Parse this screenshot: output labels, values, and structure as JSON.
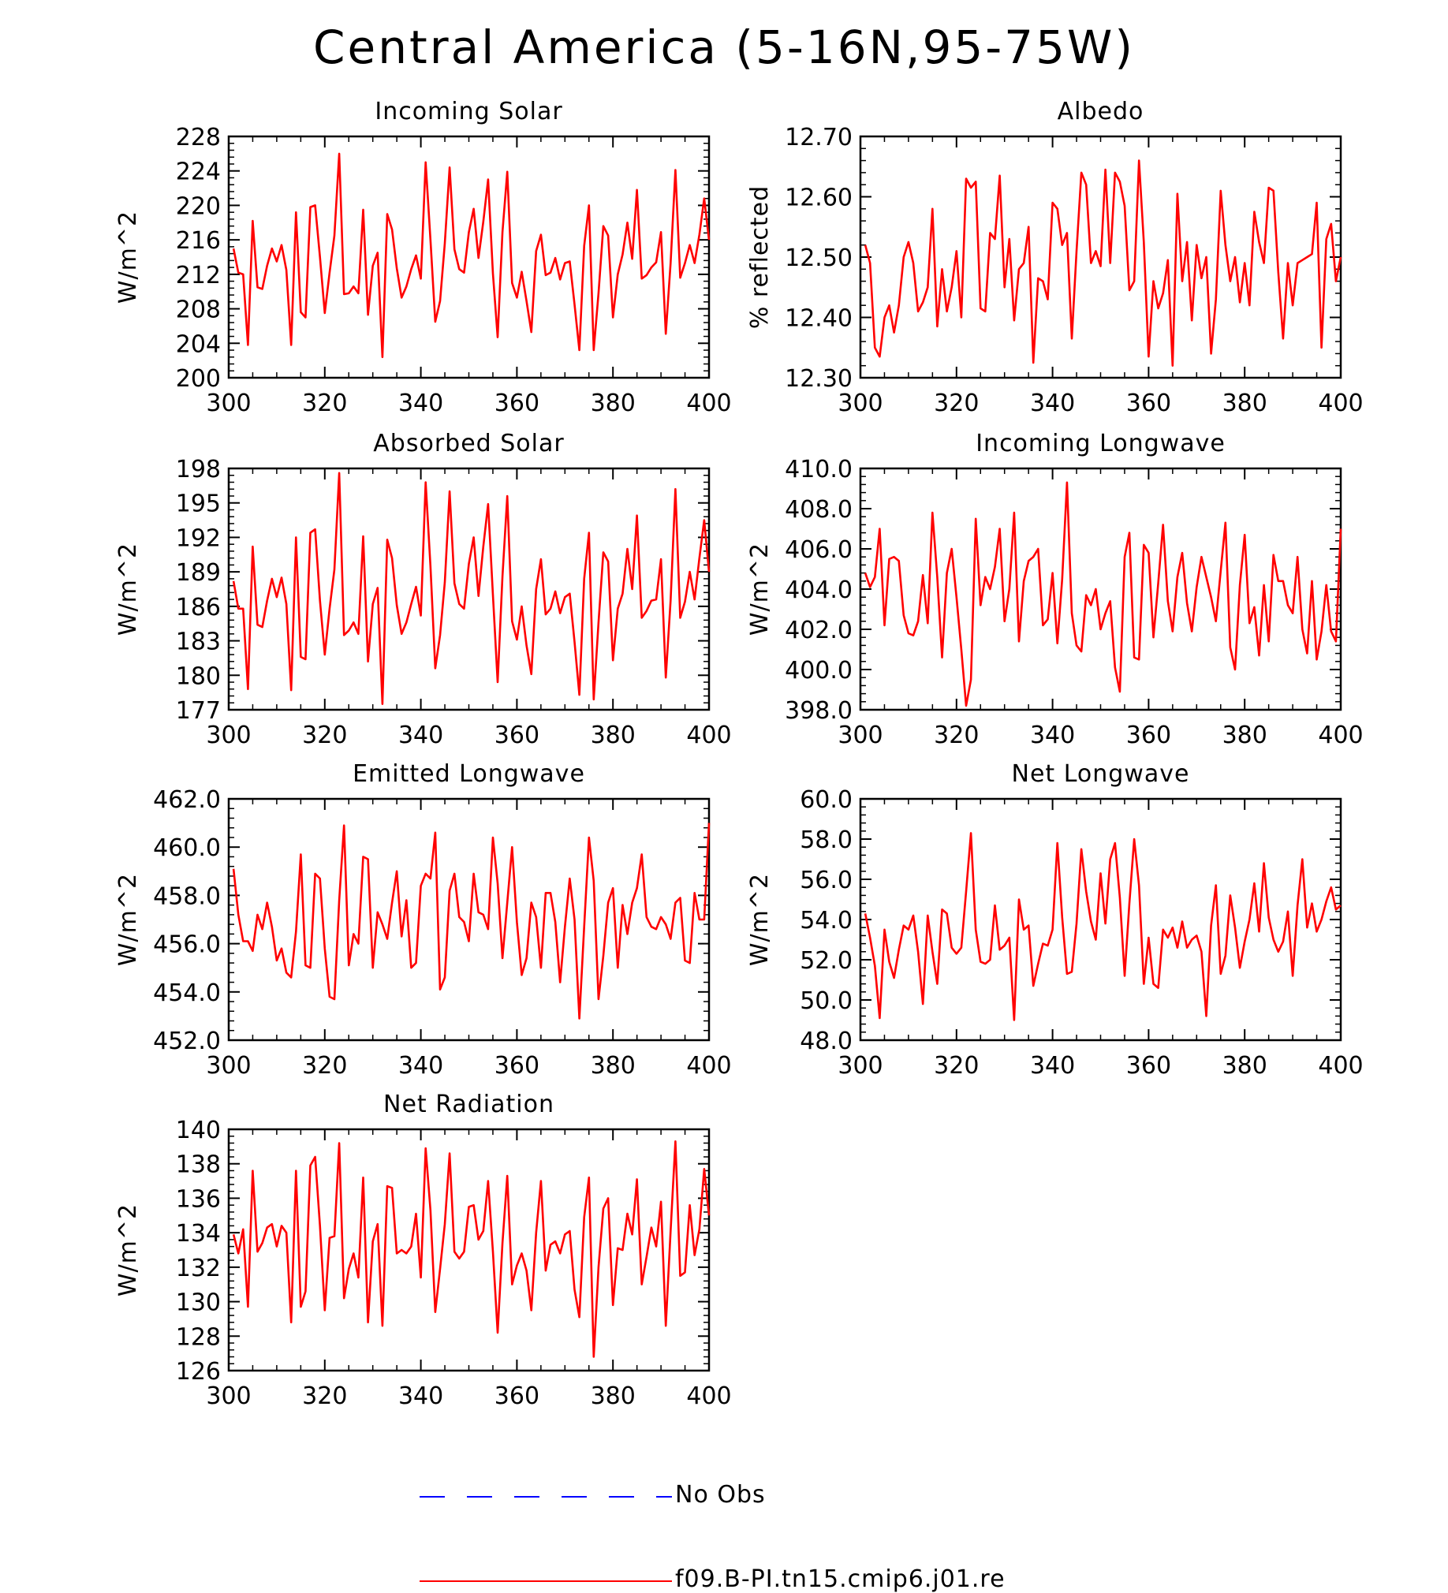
{
  "title": "Central America (5-16N,95-75W)",
  "colors": {
    "model": "#ff0000",
    "obs": "#0000ff",
    "axis": "#000000"
  },
  "legend": [
    {
      "label": "No Obs",
      "color": "#0000ff",
      "style": "dashed"
    },
    {
      "label": "f09.B-PI.tn15.cmip6.j01.re",
      "color": "#ff0000",
      "style": "solid"
    }
  ],
  "chart_data": [
    {
      "type": "line",
      "title": "Incoming Solar",
      "xlabel": "",
      "ylabel": "W/m^2",
      "xlim": [
        300,
        400
      ],
      "ylim": [
        200,
        228
      ],
      "yticks": [
        "200",
        "204",
        "208",
        "212",
        "216",
        "220",
        "224",
        "228"
      ],
      "xticks": [
        "300",
        "320",
        "340",
        "360",
        "380",
        "400"
      ],
      "series": [
        {
          "name": "f09.B-PI.tn15.cmip6.j01.re",
          "x_start": 301,
          "values": [
            215,
            212.2,
            212,
            203.8,
            218.2,
            210.5,
            210.3,
            213,
            215,
            213.5,
            215.4,
            212.5,
            203.8,
            219.2,
            207.6,
            207,
            219.8,
            220,
            214,
            207.5,
            212.2,
            216.5,
            226,
            209.7,
            209.8,
            210.6,
            209.8,
            219.5,
            207.3,
            213,
            214.5,
            202.4,
            219,
            217.2,
            212.7,
            209.3,
            210.6,
            212.6,
            214.2,
            211.5,
            225,
            216,
            206.5,
            208.9,
            215.6,
            224.4,
            214.9,
            212.6,
            212.2,
            216.9,
            219.6,
            213.9,
            218.1,
            223,
            212.1,
            204.7,
            216.9,
            223.9,
            211,
            209.3,
            212.3,
            208.9,
            205.3,
            214.7,
            216.6,
            211.9,
            212.2,
            213.9,
            211.4,
            213.3,
            213.5,
            208.5,
            203.2,
            215.3,
            220,
            203.2,
            209.8,
            217.6,
            216.5,
            207,
            212,
            214.3,
            218,
            213.8,
            221.8,
            211.5,
            211.9,
            212.8,
            213.4,
            216.9,
            205.1,
            213.3,
            224.1,
            211.6,
            213.3,
            215.4,
            213.3,
            216.6,
            220.8,
            216
          ]
        }
      ]
    },
    {
      "type": "line",
      "title": "Albedo",
      "xlabel": "",
      "ylabel": "% reflected",
      "xlim": [
        300,
        400
      ],
      "ylim": [
        12.3,
        12.7
      ],
      "yticks": [
        "12.30",
        "12.40",
        "12.50",
        "12.60",
        "12.70"
      ],
      "xticks": [
        "300",
        "320",
        "340",
        "360",
        "380",
        "400"
      ],
      "series": [
        {
          "name": "f09.B-PI.tn15.cmip6.j01.re",
          "x_start": 301,
          "values": [
            12.52,
            12.49,
            12.35,
            12.335,
            12.4,
            12.42,
            12.375,
            12.42,
            12.5,
            12.525,
            12.49,
            12.41,
            12.425,
            12.45,
            12.58,
            12.385,
            12.48,
            12.41,
            12.45,
            12.51,
            12.4,
            12.63,
            12.615,
            12.625,
            12.415,
            12.41,
            12.54,
            12.53,
            12.635,
            12.45,
            12.53,
            12.395,
            12.48,
            12.49,
            12.55,
            12.325,
            12.465,
            12.46,
            12.43,
            12.59,
            12.58,
            12.52,
            12.54,
            12.365,
            12.51,
            12.64,
            12.62,
            12.49,
            12.51,
            12.485,
            12.645,
            12.49,
            12.64,
            12.625,
            12.585,
            12.445,
            12.46,
            12.66,
            12.525,
            12.335,
            12.46,
            12.415,
            12.44,
            12.495,
            12.32,
            12.605,
            12.46,
            12.525,
            12.395,
            12.52,
            12.465,
            12.5,
            12.34,
            12.43,
            12.61,
            12.52,
            12.46,
            12.5,
            12.425,
            12.49,
            12.42,
            12.575,
            12.525,
            12.49,
            12.615,
            12.61,
            12.475,
            12.365,
            12.49,
            12.42,
            12.49,
            12.495,
            12.5,
            12.505,
            12.59,
            12.35,
            12.53,
            12.555,
            12.46,
            12.5
          ]
        }
      ]
    },
    {
      "type": "line",
      "title": "Absorbed Solar",
      "xlabel": "",
      "ylabel": "W/m^2",
      "xlim": [
        300,
        400
      ],
      "ylim": [
        177,
        198
      ],
      "yticks": [
        "177",
        "180",
        "183",
        "186",
        "189",
        "192",
        "195",
        "198"
      ],
      "xticks": [
        "300",
        "320",
        "340",
        "360",
        "380",
        "400"
      ],
      "series": [
        {
          "name": "f09.B-PI.tn15.cmip6.j01.re",
          "x_start": 301,
          "values": [
            188.2,
            185.8,
            185.8,
            178.8,
            191.2,
            184.4,
            184.2,
            186.5,
            188.4,
            186.8,
            188.5,
            186.2,
            178.7,
            192,
            181.6,
            181.4,
            192.4,
            192.7,
            186.5,
            181.8,
            185.8,
            189.2,
            197.6,
            183.5,
            183.9,
            184.6,
            183.6,
            192.1,
            181.2,
            186.2,
            187.6,
            177.5,
            191.8,
            190.2,
            186.1,
            183.6,
            184.6,
            186.2,
            187.7,
            185.2,
            196.8,
            189.5,
            180.6,
            183.5,
            188.1,
            196,
            188,
            186.2,
            185.8,
            189.7,
            192,
            186.9,
            191.2,
            194.9,
            187,
            179.4,
            188.6,
            195.6,
            184.7,
            183.1,
            186,
            182.6,
            180.1,
            187.5,
            190.1,
            185.3,
            185.8,
            187.3,
            185.4,
            186.8,
            187.1,
            182.9,
            178.3,
            188.4,
            192.4,
            177.9,
            184.6,
            190.7,
            189.9,
            181.3,
            185.8,
            187.1,
            191,
            187.5,
            193.9,
            185,
            185.6,
            186.5,
            186.6,
            190.1,
            179.8,
            186.5,
            196.2,
            185,
            186.4,
            189,
            186.6,
            190.2,
            193.5,
            189
          ]
        }
      ]
    },
    {
      "type": "line",
      "title": "Incoming Longwave",
      "xlabel": "",
      "ylabel": "W/m^2",
      "xlim": [
        300,
        400
      ],
      "ylim": [
        398,
        410
      ],
      "yticks": [
        "398.0",
        "400.0",
        "402.0",
        "404.0",
        "406.0",
        "408.0",
        "410.0"
      ],
      "xticks": [
        "300",
        "320",
        "340",
        "360",
        "380",
        "400"
      ],
      "series": [
        {
          "name": "f09.B-PI.tn15.cmip6.j01.re",
          "x_start": 301,
          "values": [
            404.8,
            404.1,
            404.6,
            407,
            402.2,
            405.5,
            405.6,
            405.4,
            402.7,
            401.8,
            401.7,
            402.4,
            404.7,
            402.3,
            407.8,
            404.6,
            400.6,
            404.8,
            406,
            403.6,
            401,
            398.2,
            399.5,
            407.5,
            403.2,
            404.6,
            404,
            405.1,
            407,
            402.4,
            404,
            407.8,
            401.4,
            404.4,
            405.4,
            405.6,
            406,
            402.2,
            402.5,
            404.8,
            401.3,
            404.5,
            409.3,
            402.8,
            401.2,
            400.9,
            403.7,
            403.2,
            404,
            402,
            402.8,
            403.4,
            400.1,
            398.9,
            405.6,
            406.8,
            400.6,
            400.5,
            406.2,
            405.8,
            401.6,
            404.3,
            407.2,
            403.4,
            401.9,
            404.6,
            405.8,
            403.3,
            401.9,
            404.1,
            405.6,
            404.6,
            403.6,
            402.4,
            404.9,
            407.3,
            401.1,
            400,
            404.2,
            406.7,
            402.3,
            403.1,
            400.7,
            404.2,
            401.4,
            405.7,
            404.4,
            404.4,
            403.2,
            402.8,
            405.6,
            402,
            400.8,
            404.4,
            400.5,
            401.9,
            404.2,
            401.9,
            401.4,
            407
          ]
        }
      ]
    },
    {
      "type": "line",
      "title": "Emitted Longwave",
      "xlabel": "",
      "ylabel": "W/m^2",
      "xlim": [
        300,
        400
      ],
      "ylim": [
        452,
        462
      ],
      "yticks": [
        "452.0",
        "454.0",
        "456.0",
        "458.0",
        "460.0",
        "462.0"
      ],
      "xticks": [
        "300",
        "320",
        "340",
        "360",
        "380",
        "400"
      ],
      "series": [
        {
          "name": "f09.B-PI.tn15.cmip6.j01.re",
          "x_start": 301,
          "values": [
            459.1,
            457.2,
            456.1,
            456.1,
            455.7,
            457.2,
            456.6,
            457.7,
            456.7,
            455.3,
            455.8,
            454.8,
            454.6,
            456.5,
            459.7,
            455.1,
            455,
            458.9,
            458.7,
            455.8,
            453.8,
            453.7,
            457.8,
            460.9,
            455.1,
            456.4,
            456,
            459.6,
            459.5,
            455,
            457.3,
            456.8,
            456.2,
            457.7,
            459,
            456.3,
            457.8,
            455,
            455.2,
            458.4,
            458.9,
            458.7,
            460.6,
            454.1,
            454.6,
            458.2,
            458.9,
            457.1,
            456.9,
            456.1,
            458.9,
            457.3,
            457.2,
            456.6,
            460.4,
            458.5,
            455.4,
            457.7,
            460,
            456.9,
            454.7,
            455.4,
            457.7,
            457.1,
            455,
            458.1,
            458.1,
            456.9,
            454.4,
            456.7,
            458.7,
            457,
            452.9,
            456.7,
            460.4,
            458.6,
            453.7,
            455.5,
            457.7,
            458.3,
            455,
            457.6,
            456.4,
            457.7,
            458.3,
            459.7,
            457.1,
            456.7,
            456.6,
            457.1,
            456.8,
            456.2,
            457.7,
            457.9,
            455.3,
            455.2,
            458.1,
            457,
            457,
            461
          ]
        }
      ]
    },
    {
      "type": "line",
      "title": "Net Longwave",
      "xlabel": "",
      "ylabel": "W/m^2",
      "xlim": [
        300,
        400
      ],
      "ylim": [
        48,
        60
      ],
      "yticks": [
        "48.0",
        "50.0",
        "52.0",
        "54.0",
        "56.0",
        "58.0",
        "60.0"
      ],
      "xticks": [
        "300",
        "320",
        "340",
        "360",
        "380",
        "400"
      ],
      "series": [
        {
          "name": "f09.B-PI.tn15.cmip6.j01.re",
          "x_start": 301,
          "values": [
            54.3,
            53.1,
            51.7,
            49.1,
            53.5,
            51.9,
            51.1,
            52.5,
            53.7,
            53.5,
            54.2,
            52.4,
            49.8,
            54.2,
            52.4,
            50.8,
            54.5,
            54.3,
            52.6,
            52.3,
            52.6,
            55.4,
            58.3,
            53.5,
            51.9,
            51.8,
            52,
            54.7,
            52.5,
            52.7,
            53.1,
            49,
            55,
            53.5,
            53.7,
            50.7,
            51.8,
            52.8,
            52.7,
            53.5,
            57.8,
            54.1,
            51.3,
            51.4,
            53.8,
            57.5,
            55.4,
            53.9,
            53,
            56.3,
            53.8,
            57,
            57.8,
            55.1,
            51.2,
            54.8,
            58,
            55.7,
            50.8,
            53.1,
            50.8,
            50.6,
            53.5,
            53.1,
            53.6,
            52.6,
            53.9,
            52.6,
            53,
            53.2,
            52.4,
            49.2,
            53.7,
            55.7,
            51.3,
            52.2,
            55.2,
            53.6,
            51.6,
            52.9,
            54,
            55.8,
            53.4,
            56.8,
            54.1,
            53,
            52.4,
            52.9,
            54.4,
            51.2,
            54.7,
            57,
            53.6,
            54.8,
            53.4,
            54,
            54.9,
            55.6,
            54.5,
            54.7
          ]
        }
      ]
    },
    {
      "type": "line",
      "title": "Net Radiation",
      "xlabel": "",
      "ylabel": "W/m^2",
      "xlim": [
        300,
        400
      ],
      "ylim": [
        126,
        140
      ],
      "yticks": [
        "126",
        "128",
        "130",
        "132",
        "134",
        "136",
        "138",
        "140"
      ],
      "xticks": [
        "300",
        "320",
        "340",
        "360",
        "380",
        "400"
      ],
      "series": [
        {
          "name": "f09.B-PI.tn15.cmip6.j01.re",
          "x_start": 301,
          "values": [
            133.9,
            132.8,
            134.2,
            129.7,
            137.6,
            132.9,
            133.4,
            134.3,
            134.5,
            133.2,
            134.4,
            134,
            128.8,
            137.6,
            129.7,
            130.6,
            137.9,
            138.4,
            134.4,
            129.5,
            133.7,
            133.8,
            139.2,
            130.2,
            131.9,
            132.8,
            131.4,
            137.2,
            128.8,
            133.5,
            134.5,
            128.6,
            136.7,
            136.6,
            132.8,
            133,
            132.8,
            133.2,
            135.1,
            131.4,
            138.9,
            135.3,
            129.4,
            131.9,
            134.5,
            138.6,
            132.9,
            132.5,
            132.9,
            135.5,
            135.6,
            133.6,
            134.1,
            137,
            132.9,
            128.2,
            133.4,
            137.3,
            131,
            132.1,
            132.8,
            131.8,
            129.5,
            134,
            137,
            131.8,
            133.3,
            133.5,
            132.8,
            133.9,
            134.1,
            130.7,
            129.1,
            134.9,
            137.2,
            126.8,
            132,
            135.4,
            136,
            129.8,
            133.1,
            133,
            135.1,
            133.9,
            137.1,
            131,
            132.6,
            134.3,
            133.2,
            135.8,
            128.6,
            134.1,
            139.3,
            131.5,
            131.7,
            135.6,
            132.7,
            134.2,
            137.7,
            135
          ]
        }
      ]
    }
  ]
}
